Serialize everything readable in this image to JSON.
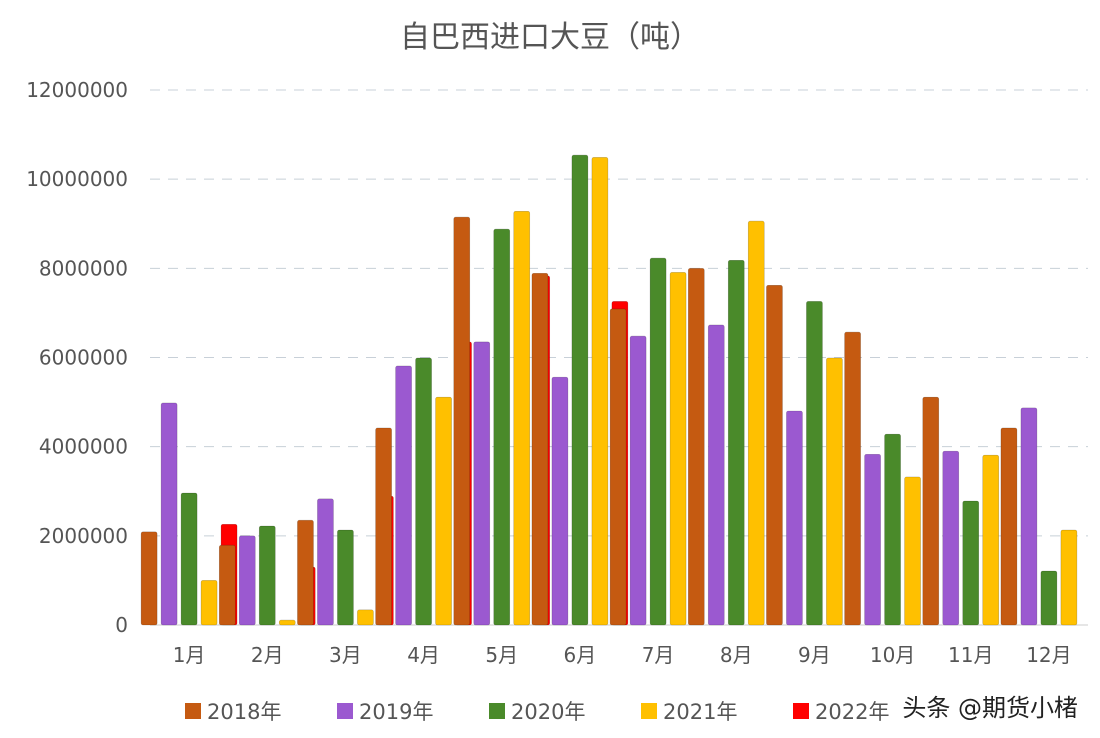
{
  "chart_data": {
    "type": "bar",
    "title": "自巴西进口大豆（吨）",
    "xlabel": "",
    "ylabel": "",
    "ylim": [
      0,
      12000000
    ],
    "yticks": [
      "0",
      "2000000",
      "4000000",
      "6000000",
      "8000000",
      "10000000",
      "12000000"
    ],
    "grid": true,
    "legend_position": "bottom",
    "categories": [
      "1月",
      "2月",
      "3月",
      "4月",
      "5月",
      "6月",
      "7月",
      "8月",
      "9月",
      "10月",
      "11月",
      "12月"
    ],
    "series": [
      {
        "name": "2018年",
        "color": "#c55a11",
        "values": [
          2090000,
          1790000,
          2350000,
          4420000,
          9150000,
          7890000,
          7090000,
          8000000,
          7620000,
          6570000,
          5110000,
          4420000
        ]
      },
      {
        "name": "2019年",
        "color": "#9b59d0",
        "values": [
          4980000,
          2000000,
          2830000,
          5810000,
          6350000,
          5560000,
          6480000,
          6730000,
          4800000,
          3830000,
          3900000,
          4870000
        ]
      },
      {
        "name": "2020年",
        "color": "#4a8a2a",
        "values": [
          2960000,
          2220000,
          2130000,
          5990000,
          8880000,
          10540000,
          8230000,
          8180000,
          7260000,
          4280000,
          2780000,
          1210000
        ]
      },
      {
        "name": "2021年",
        "color": "#ffc000",
        "values": [
          1000000,
          110000,
          340000,
          5110000,
          9280000,
          10490000,
          7910000,
          9060000,
          5990000,
          3320000,
          3810000,
          2130000
        ]
      },
      {
        "name": "2022年",
        "color": "#ff0000",
        "values": [
          2260000,
          1300000,
          2890000,
          6350000,
          7830000,
          7260000,
          null,
          null,
          null,
          null,
          null,
          null
        ]
      }
    ]
  },
  "watermark": "头条 @期货小楮"
}
